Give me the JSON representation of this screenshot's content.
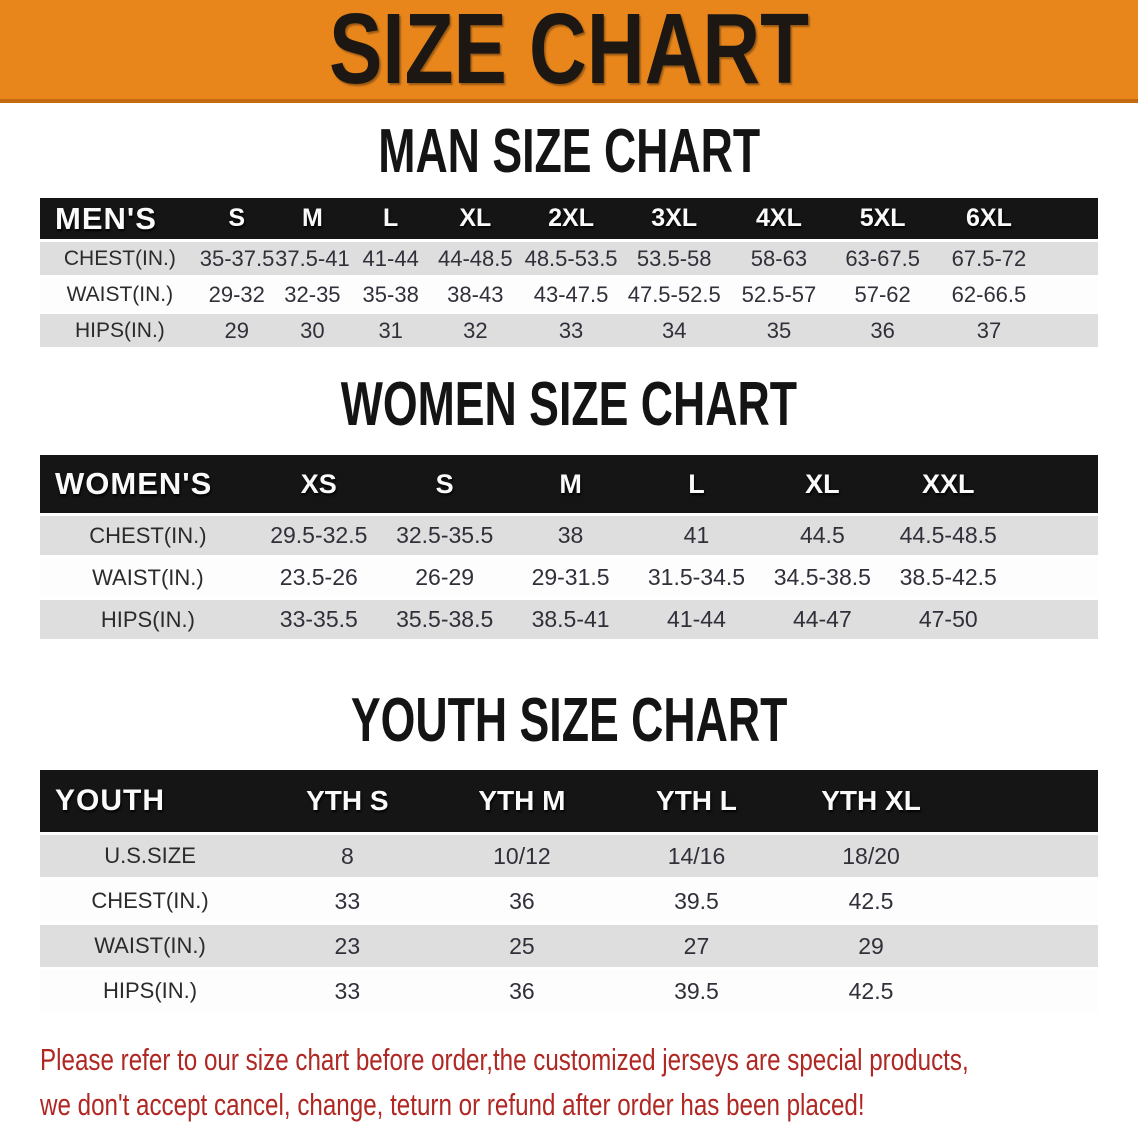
{
  "banner": {
    "title": "SIZE CHART"
  },
  "colors": {
    "accent_orange": "#E8861C",
    "banner_border": "#C36A10",
    "header_black": "#151515",
    "row_gray": "#DEDEDE",
    "note_red": "#B02824"
  },
  "sections": {
    "men": {
      "heading": "MAN SIZE CHART",
      "table": {
        "corner_label": "MEN'S",
        "columns": [
          "S",
          "M",
          "L",
          "XL",
          "2XL",
          "3XL",
          "4XL",
          "5XL",
          "6XL"
        ],
        "rows": [
          {
            "label": "CHEST(IN.)",
            "values": [
              "35-37.5",
              "37.5-41",
              "41-44",
              "44-48.5",
              "48.5-53.5",
              "53.5-58",
              "58-63",
              "63-67.5",
              "67.5-72"
            ]
          },
          {
            "label": "WAIST(IN.)",
            "values": [
              "29-32",
              "32-35",
              "35-38",
              "38-43",
              "43-47.5",
              "47.5-52.5",
              "52.5-57",
              "57-62",
              "62-66.5"
            ]
          },
          {
            "label": "HIPS(IN.)",
            "values": [
              "29",
              "30",
              "31",
              "32",
              "33",
              "34",
              "35",
              "36",
              "37"
            ]
          }
        ]
      }
    },
    "women": {
      "heading": "WOMEN SIZE CHART",
      "table": {
        "corner_label": "WOMEN'S",
        "columns": [
          "XS",
          "S",
          "M",
          "L",
          "XL",
          "XXL"
        ],
        "rows": [
          {
            "label": "CHEST(IN.)",
            "values": [
              "29.5-32.5",
              "32.5-35.5",
              "38",
              "41",
              "44.5",
              "44.5-48.5"
            ]
          },
          {
            "label": "WAIST(IN.)",
            "values": [
              "23.5-26",
              "26-29",
              "29-31.5",
              "31.5-34.5",
              "34.5-38.5",
              "38.5-42.5"
            ]
          },
          {
            "label": "HIPS(IN.)",
            "values": [
              "33-35.5",
              "35.5-38.5",
              "38.5-41",
              "41-44",
              "44-47",
              "47-50"
            ]
          }
        ]
      }
    },
    "youth": {
      "heading": "YOUTH SIZE CHART",
      "table": {
        "corner_label": "YOUTH",
        "columns": [
          "YTH S",
          "YTH M",
          "YTH L",
          "YTH XL"
        ],
        "rows": [
          {
            "label": "U.S.SIZE",
            "values": [
              "8",
              "10/12",
              "14/16",
              "18/20"
            ]
          },
          {
            "label": "CHEST(IN.)",
            "values": [
              "33",
              "36",
              "39.5",
              "42.5"
            ]
          },
          {
            "label": "WAIST(IN.)",
            "values": [
              "23",
              "25",
              "27",
              "29"
            ]
          },
          {
            "label": "HIPS(IN.)",
            "values": [
              "33",
              "36",
              "39.5",
              "42.5"
            ]
          }
        ]
      }
    }
  },
  "note": {
    "line1": "Please refer to our size chart before order,the customized jerseys are special products,",
    "line2": "we don't accept cancel, change, teturn or refund after order has been placed!"
  }
}
